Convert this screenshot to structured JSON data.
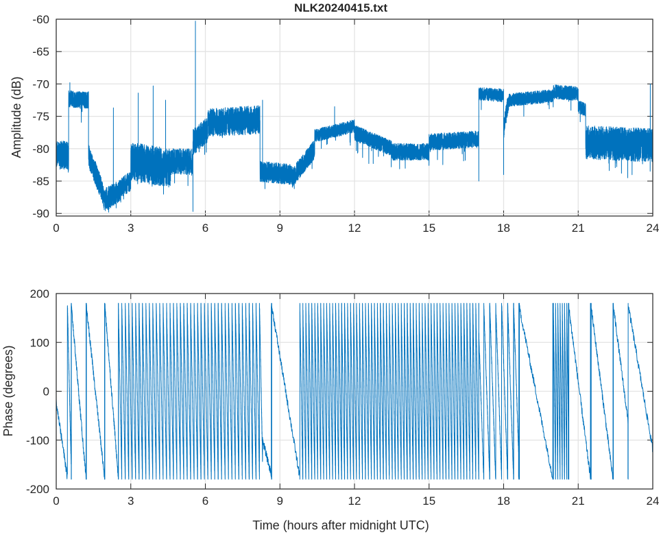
{
  "chart_data": [
    {
      "type": "line",
      "title": "NLK20240415.txt",
      "xlabel": "",
      "ylabel": "Amplitude (dB)",
      "xlim": [
        0,
        24
      ],
      "ylim": [
        -90.4,
        -60
      ],
      "xticks": [
        0,
        3,
        6,
        9,
        12,
        15,
        18,
        21,
        24
      ],
      "yticks": [
        -90,
        -85,
        -80,
        -75,
        -70,
        -65,
        -60
      ],
      "grid": true,
      "color": "#0072BD",
      "segments": [
        {
          "t": [
            0,
            0.5
          ],
          "mean": [
            -81,
            -81
          ],
          "spread": 2.2
        },
        {
          "t": [
            0.5,
            1.3
          ],
          "mean": [
            -72.3,
            -72.5
          ],
          "spread": 1.3
        },
        {
          "t": [
            1.3,
            1.9
          ],
          "mean": [
            -81,
            -87
          ],
          "spread": 1.8
        },
        {
          "t": [
            1.9,
            2.6
          ],
          "mean": [
            -88,
            -86.5
          ],
          "spread": 1.8
        },
        {
          "t": [
            2.6,
            3.0
          ],
          "mean": [
            -86,
            -85
          ],
          "spread": 1.5
        },
        {
          "t": [
            3.0,
            4.6
          ],
          "mean": [
            -82,
            -83
          ],
          "spread": 3.0
        },
        {
          "t": [
            4.6,
            5.5
          ],
          "mean": [
            -82,
            -82
          ],
          "spread": 2.0
        },
        {
          "t": [
            5.5,
            6.1
          ],
          "mean": [
            -79,
            -77
          ],
          "spread": 2.0
        },
        {
          "t": [
            6.1,
            8.2
          ],
          "mean": [
            -76,
            -75.5
          ],
          "spread": 2.2
        },
        {
          "t": [
            8.2,
            9.5
          ],
          "mean": [
            -83.5,
            -84
          ],
          "spread": 1.6
        },
        {
          "t": [
            9.5,
            10.4
          ],
          "mean": [
            -84.5,
            -80
          ],
          "spread": 1.5
        },
        {
          "t": [
            10.4,
            12.0
          ],
          "mean": [
            -78,
            -76.5
          ],
          "spread": 1.0
        },
        {
          "t": [
            12.0,
            13.5
          ],
          "mean": [
            -77.5,
            -80
          ],
          "spread": 1.2
        },
        {
          "t": [
            13.5,
            15.0
          ],
          "mean": [
            -80.5,
            -80.5
          ],
          "spread": 1.3
        },
        {
          "t": [
            15.0,
            17.0
          ],
          "mean": [
            -79,
            -78.5
          ],
          "spread": 1.3
        },
        {
          "t": [
            17.0,
            18.0
          ],
          "mean": [
            -71.5,
            -71.8
          ],
          "spread": 1.0
        },
        {
          "t": [
            18.0,
            18.2
          ],
          "mean": [
            -77,
            -72.5
          ],
          "spread": 1.5
        },
        {
          "t": [
            18.2,
            20.0
          ],
          "mean": [
            -72.5,
            -71.8
          ],
          "spread": 1.0
        },
        {
          "t": [
            20.0,
            21.0
          ],
          "mean": [
            -71.2,
            -71.5
          ],
          "spread": 1.1
        },
        {
          "t": [
            21.0,
            21.3
          ],
          "mean": [
            -73.5,
            -74
          ],
          "spread": 1.0
        },
        {
          "t": [
            21.3,
            24.0
          ],
          "mean": [
            -79,
            -79.5
          ],
          "spread": 2.6
        }
      ],
      "spikes": [
        [
          0.55,
          -69.8
        ],
        [
          2.3,
          -73.7
        ],
        [
          3.3,
          -71.4
        ],
        [
          3.9,
          -70.3
        ],
        [
          4.4,
          -72.5
        ],
        [
          5.6,
          -60.3
        ],
        [
          5.5,
          -89.7
        ],
        [
          8.3,
          -72.5
        ],
        [
          11.2,
          -73.5
        ],
        [
          17.0,
          -85.0
        ],
        [
          18.0,
          -84.0
        ],
        [
          23.9,
          -70.0
        ]
      ]
    },
    {
      "type": "line",
      "title": "",
      "xlabel": "Time (hours after midnight UTC)",
      "ylabel": "Phase (degrees)",
      "xlim": [
        0,
        24
      ],
      "ylim": [
        -200,
        200
      ],
      "xticks": [
        0,
        3,
        6,
        9,
        12,
        15,
        18,
        21,
        24
      ],
      "yticks": [
        -200,
        -100,
        0,
        100,
        200
      ],
      "grid": true,
      "color": "#0072BD",
      "wrap": [
        -180,
        180
      ],
      "segments": [
        {
          "t": [
            0,
            0.45
          ],
          "start": -20,
          "rate": -350
        },
        {
          "t": [
            0.45,
            0.6
          ],
          "start": 180,
          "rate": -2200
        },
        {
          "t": [
            0.6,
            1.2
          ],
          "start": 180,
          "rate": -600
        },
        {
          "t": [
            1.2,
            1.95
          ],
          "start": 180,
          "rate": -480
        },
        {
          "t": [
            1.95,
            2.5
          ],
          "start": 180,
          "rate": -650
        },
        {
          "t": [
            2.5,
            8.3
          ],
          "start": 180,
          "rate": -2600
        },
        {
          "t": [
            8.3,
            8.65
          ],
          "start": -100,
          "rate": -200
        },
        {
          "t": [
            8.65,
            9.8
          ],
          "start": 180,
          "rate": -310
        },
        {
          "t": [
            9.8,
            17.0
          ],
          "start": 180,
          "rate": -3000
        },
        {
          "t": [
            17.0,
            18.6
          ],
          "start": 120,
          "rate": -1500
        },
        {
          "t": [
            18.6,
            20.0
          ],
          "start": 180,
          "rate": -260
        },
        {
          "t": [
            20.0,
            20.6
          ],
          "start": 180,
          "rate": -4000
        },
        {
          "t": [
            20.6,
            23.0
          ],
          "start": 180,
          "rate": -400
        },
        {
          "t": [
            23.0,
            24.0
          ],
          "start": 180,
          "rate": -300
        }
      ]
    }
  ]
}
